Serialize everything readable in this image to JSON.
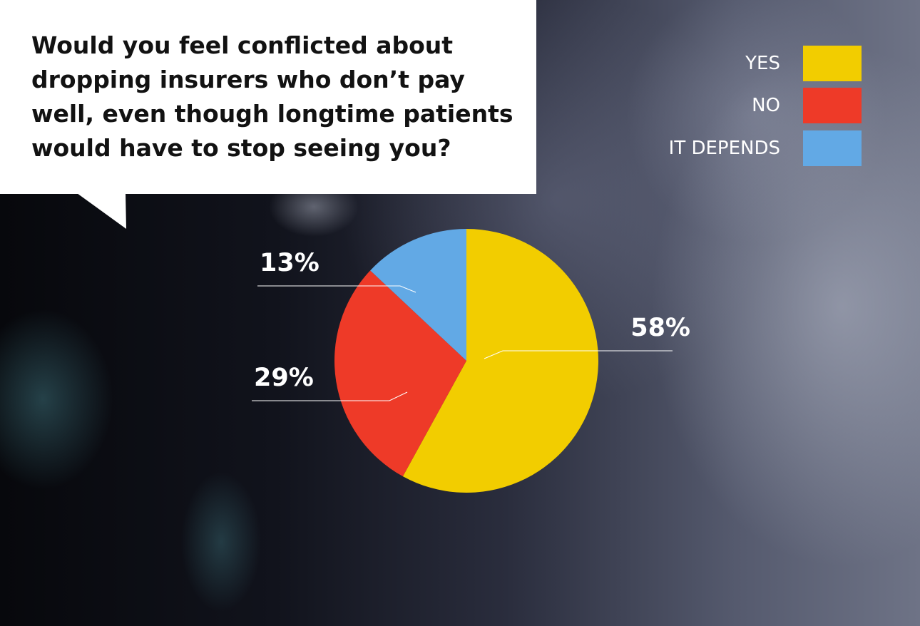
{
  "question": "Would you feel conflicted about dropping insurers who don’t pay well, even though longtime patients would have to stop seeing you?",
  "legend": [
    {
      "label": "YES",
      "color": "#f2cd00"
    },
    {
      "label": "NO",
      "color": "#ee3a28"
    },
    {
      "label": "IT DEPENDS",
      "color": "#62a9e5"
    }
  ],
  "chart_data": {
    "type": "pie",
    "categories": [
      "YES",
      "NO",
      "IT DEPENDS"
    ],
    "values": [
      58,
      29,
      13
    ],
    "labels": [
      "58%",
      "29%",
      "13%"
    ],
    "colors": [
      "#f2cd00",
      "#ee3a28",
      "#62a9e5"
    ],
    "legend_position": "top-right"
  }
}
